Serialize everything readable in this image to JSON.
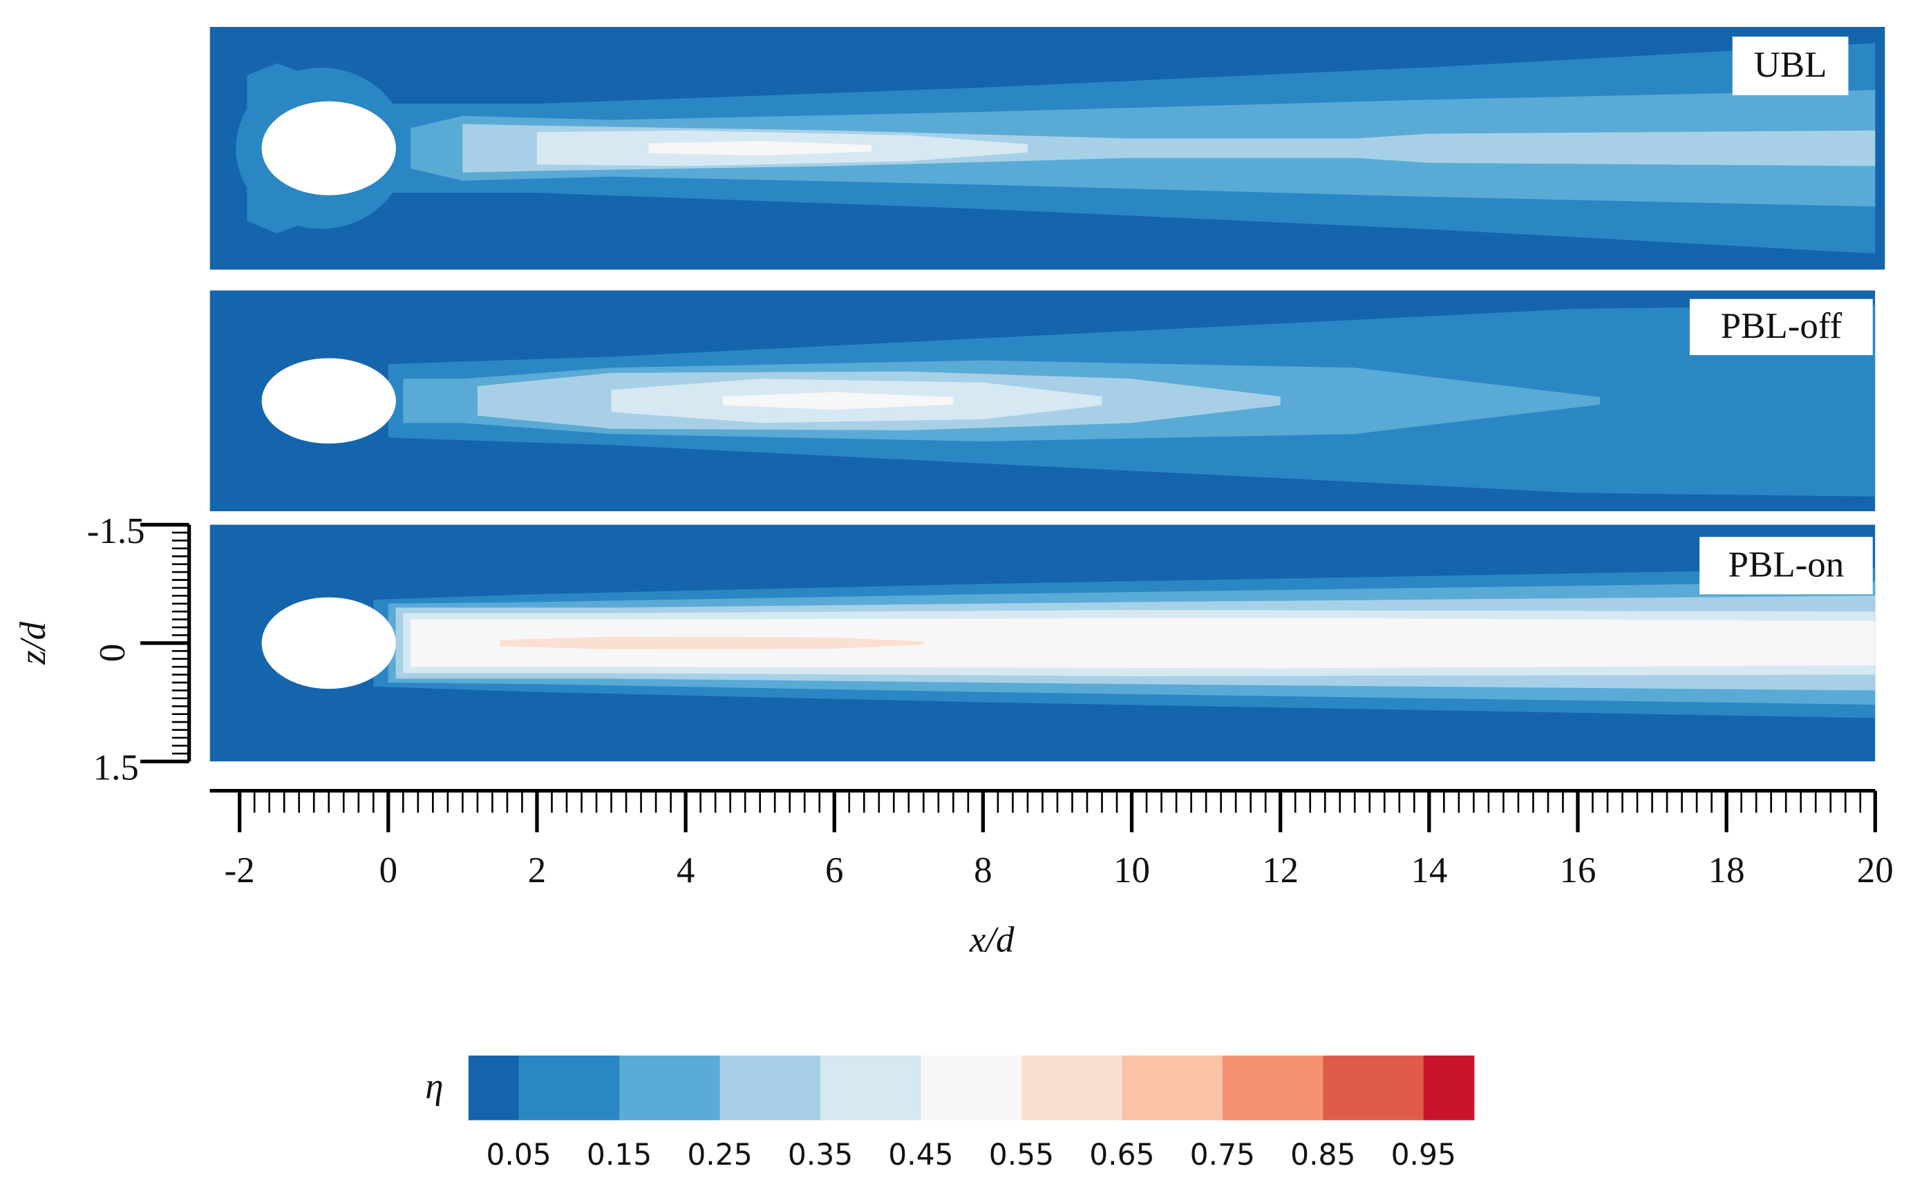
{
  "chart_data": {
    "type": "contour",
    "panels": [
      {
        "label": "UBL"
      },
      {
        "label": "PBL-off"
      },
      {
        "label": "PBL-on"
      }
    ],
    "xlabel": "x/d",
    "ylabel": "z/d",
    "xlim": [
      -2.4,
      20
    ],
    "xticks": [
      -2,
      0,
      2,
      4,
      6,
      8,
      10,
      12,
      14,
      16,
      18,
      20
    ],
    "ylim": [
      1.5,
      -1.5
    ],
    "yticks": [
      -1.5,
      0,
      1.5
    ],
    "colorbar": {
      "label": "η",
      "lim": [
        0,
        1
      ],
      "ticks": [
        0.05,
        0.15,
        0.25,
        0.35,
        0.45,
        0.55,
        0.65,
        0.75,
        0.85,
        0.95
      ],
      "colors": [
        "#1565ad",
        "#2a87c4",
        "#5aaad6",
        "#a7d0e6",
        "#d6e8f2",
        "#f7f7f7",
        "#fbdfd2",
        "#fbc2a8",
        "#f4926f",
        "#e05c4a",
        "#c8142c"
      ]
    }
  }
}
